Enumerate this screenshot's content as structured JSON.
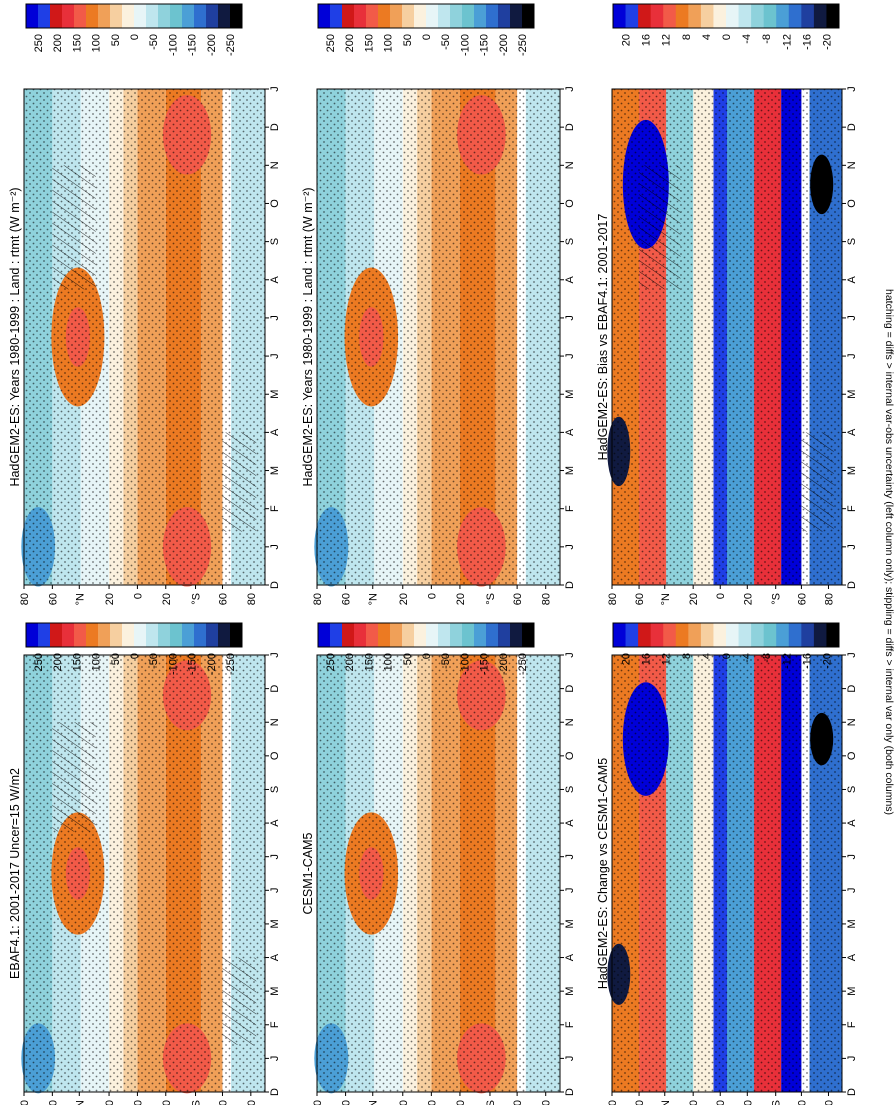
{
  "figure": {
    "footnote": "hatching = diffs > internal var-obs uncertainty (left column only); stippling = diffs > internal var only (both columns)"
  },
  "colorbars": {
    "flux": {
      "labels": [
        "250",
        "200",
        "150",
        "100",
        "50",
        "0",
        "-50",
        "-100",
        "-150",
        "-200",
        "-250"
      ],
      "colors": [
        "#0000d8",
        "#1f3fe6",
        "#d01818",
        "#e8303a",
        "#f25a48",
        "#ec7a22",
        "#f0a058",
        "#f6cfa0",
        "#fbf1de",
        "#e7f5f7",
        "#bfe6ee",
        "#8fd2dc",
        "#6cc3cf",
        "#4b9fd6",
        "#2f6fcf",
        "#1f3f9f",
        "#101a40",
        "#000000"
      ]
    },
    "diff": {
      "labels": [
        "20",
        "16",
        "12",
        "8",
        "4",
        "0",
        "-4",
        "-8",
        "-12",
        "-16",
        "-20"
      ],
      "colors": [
        "#0000d8",
        "#1f3fe6",
        "#d01818",
        "#e8303a",
        "#f25a48",
        "#ec7a22",
        "#f0a058",
        "#f6cfa0",
        "#fbf1de",
        "#e7f5f7",
        "#bfe6ee",
        "#8fd2dc",
        "#6cc3cf",
        "#4b9fd6",
        "#2f6fcf",
        "#1f3f9f",
        "#101a40",
        "#000000"
      ]
    }
  },
  "axes": {
    "months": [
      "D",
      "J",
      "F",
      "M",
      "A",
      "M",
      "J",
      "J",
      "A",
      "S",
      "O",
      "N",
      "D",
      "J"
    ],
    "lat_ticks": [
      {
        "label": "80",
        "lat": 80
      },
      {
        "label": "60",
        "lat": 60
      },
      {
        "label": "°N",
        "lat": 41
      },
      {
        "label": "20",
        "lat": 20
      },
      {
        "label": "0",
        "lat": 0
      },
      {
        "label": "20",
        "lat": -20
      },
      {
        "label": "°S",
        "lat": -41
      },
      {
        "label": "60",
        "lat": -60
      },
      {
        "label": "80",
        "lat": -80
      }
    ]
  },
  "chart_data": [
    {
      "type": "heatmap",
      "title": "HadGEM2-ES: Years 1980-1999 : Land : rtmt (W m⁻²)",
      "colorbar": "flux",
      "hatching": true
    },
    {
      "type": "heatmap",
      "title": "HadGEM2-ES: Years 1980-1999 : Land : rtmt (W m⁻²)",
      "colorbar": "flux",
      "hatching": false
    },
    {
      "type": "heatmap",
      "title": "EBAF4.1: 2001-2017 Uncer=15 W/m2",
      "colorbar": "flux",
      "hatching": true
    },
    {
      "type": "heatmap",
      "title": "CESM1-CAM5",
      "colorbar": "flux",
      "hatching": false
    },
    {
      "type": "heatmap",
      "title": "HadGEM2-ES: Bias vs EBAF4.1: 2001-2017",
      "colorbar": "diff",
      "hatching": true
    },
    {
      "type": "heatmap",
      "title": "HadGEM2-ES: Change vs CESM1-CAM5",
      "colorbar": "diff",
      "hatching": false
    }
  ]
}
